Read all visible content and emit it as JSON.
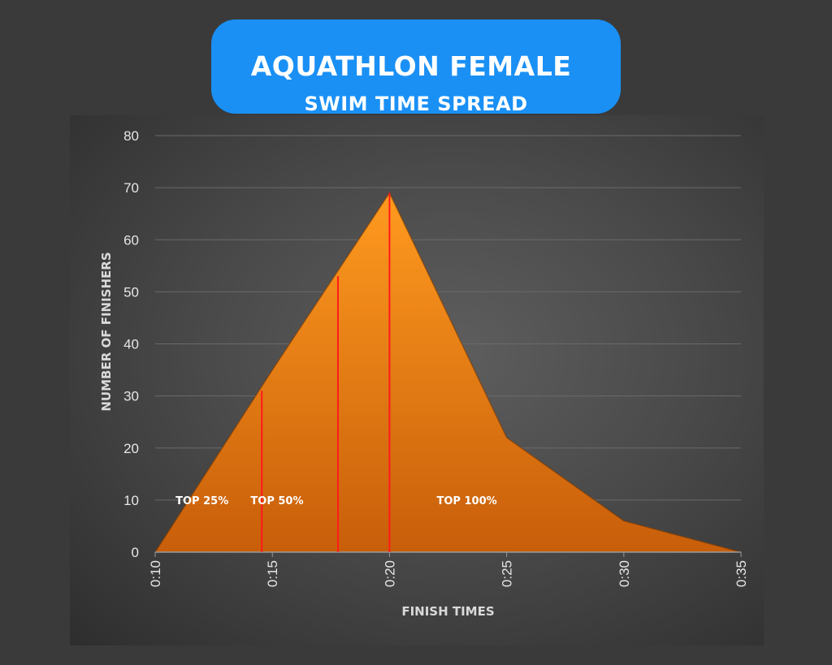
{
  "title": {
    "line1": "AQUATHLON FEMALE",
    "line2": "SWIM TIME SPREAD"
  },
  "colors": {
    "background": "#3a3a3a",
    "title_pill": "#1a90f5",
    "area_fill_top": "#ff9a1f",
    "area_fill_bottom": "#c85e0a",
    "marker_line": "#ff1a1a"
  },
  "chart_data": {
    "type": "area",
    "xlabel": "FINISH TIMES",
    "ylabel": "NUMBER OF FINISHERS",
    "x": [
      "0:10",
      "0:15",
      "0:20",
      "0:25",
      "0:30",
      "0:35"
    ],
    "x_minutes": [
      10,
      15,
      20,
      25,
      30,
      35
    ],
    "x_tick_labels": [
      "0:10",
      "0:15",
      "0:20",
      "0:25",
      "0:30",
      "0:35"
    ],
    "y_ticks": [
      0,
      10,
      20,
      30,
      40,
      50,
      60,
      70,
      80
    ],
    "ylim": [
      0,
      80
    ],
    "xlim": [
      10,
      35
    ],
    "grid": true,
    "series": [
      {
        "values": [
          0,
          35,
          69,
          22,
          6,
          0
        ]
      }
    ],
    "markers": [
      {
        "x_minutes": 14.55,
        "y": 31,
        "label": "TOP 25%",
        "label_x_minutes": 12.0
      },
      {
        "x_minutes": 17.8,
        "y": 53,
        "label": "TOP 50%",
        "label_x_minutes": 15.2
      },
      {
        "x_minutes": 20.0,
        "y": 69,
        "label": "TOP 100%",
        "label_x_minutes": 23.3
      }
    ],
    "region_label_y": 10
  }
}
